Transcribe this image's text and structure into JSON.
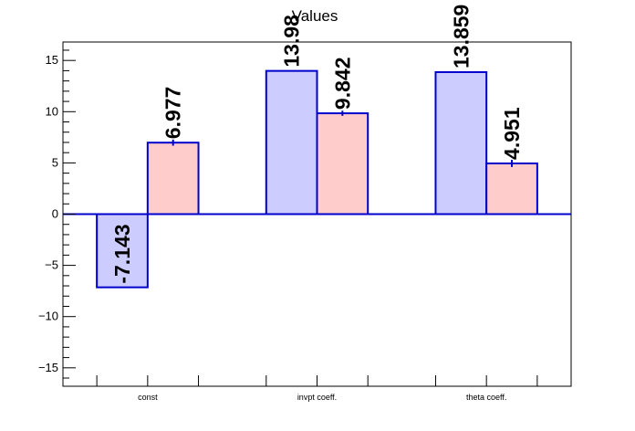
{
  "chart_data": {
    "type": "bar",
    "title": "Values",
    "categories": [
      "const",
      "invpt coeff.",
      "theta coeff."
    ],
    "series": [
      {
        "values": [
          -7.143,
          13.98,
          13.859
        ],
        "labels": [
          "-7.143",
          "13.98",
          "13.859"
        ],
        "errors": [
          0.0,
          0.0,
          0.0
        ],
        "fill": "#ccccff",
        "stroke": "#0000cc"
      },
      {
        "values": [
          6.977,
          9.842,
          4.951
        ],
        "labels": [
          "6.977",
          "9.842",
          "4.951"
        ],
        "errors": [
          0.3,
          0.25,
          0.35
        ],
        "fill": "#ffcccc",
        "stroke": "#0000cc"
      }
    ],
    "ylim": [
      -16.8,
      16.8
    ],
    "yticks": [
      -15,
      -10,
      -5,
      0,
      5,
      10,
      15
    ],
    "ytick_labels": [
      "−15",
      "−10",
      "−5",
      "0",
      "5",
      "10",
      "15"
    ],
    "zero_line_color": "#0000cc",
    "grid": false
  }
}
